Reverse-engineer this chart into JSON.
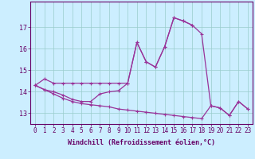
{
  "bg_color": "#cceeff",
  "line_color": "#993399",
  "grid_color": "#99cccc",
  "xlabel": "Windchill (Refroidissement éolien,°C)",
  "hours": [
    0,
    1,
    2,
    3,
    4,
    5,
    6,
    7,
    8,
    9,
    10,
    11,
    12,
    13,
    14,
    15,
    16,
    17,
    18,
    19,
    20,
    21,
    22,
    23
  ],
  "line1": [
    14.3,
    14.6,
    14.4,
    14.4,
    14.4,
    14.4,
    14.4,
    14.4,
    14.4,
    14.4,
    14.4,
    16.3,
    15.4,
    15.15,
    16.1,
    17.45,
    17.3,
    17.1,
    null,
    null,
    null,
    null,
    null,
    null
  ],
  "line2": [
    14.3,
    14.1,
    14.0,
    13.85,
    13.65,
    13.55,
    13.55,
    13.9,
    14.0,
    14.05,
    14.4,
    16.3,
    15.4,
    15.15,
    16.1,
    17.45,
    17.3,
    17.1,
    16.7,
    13.35,
    13.25,
    12.9,
    13.55,
    13.2
  ],
  "line3": [
    14.3,
    14.1,
    13.9,
    13.7,
    13.55,
    13.45,
    13.4,
    13.35,
    13.3,
    13.2,
    13.15,
    13.1,
    13.05,
    13.0,
    12.95,
    12.9,
    12.85,
    12.8,
    12.75,
    13.35,
    13.25,
    12.9,
    13.55,
    13.2
  ],
  "ylim_min": 12.5,
  "ylim_max": 18.2,
  "yticks": [
    13,
    14,
    15,
    16,
    17
  ],
  "xticks": [
    0,
    1,
    2,
    3,
    4,
    5,
    6,
    7,
    8,
    9,
    10,
    11,
    12,
    13,
    14,
    15,
    16,
    17,
    18,
    19,
    20,
    21,
    22,
    23
  ],
  "tick_fontsize": 5.5,
  "xlabel_fontsize": 6.0
}
